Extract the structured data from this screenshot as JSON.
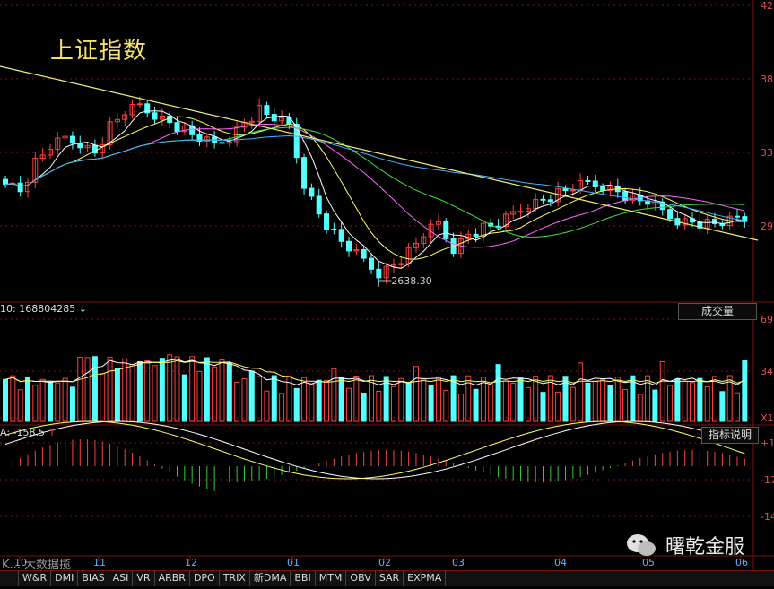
{
  "header": {
    "title": "上证指数"
  },
  "volume_header": {
    "text": "10: 168804285",
    "arrow": "↓",
    "right_button": "成交量"
  },
  "macd_header": {
    "text": "A: -158.5",
    "arrow": "↑",
    "right_button": "指标说明"
  },
  "right_axis": {
    "price_ticks": [
      "42",
      "38",
      "33",
      "29"
    ],
    "volume_ticks": [
      "69",
      "34",
      "X1"
    ],
    "macd_ticks": [
      "+1",
      "-17",
      "-14"
    ]
  },
  "x_axis": {
    "labels": [
      "10",
      "11",
      "12",
      "01",
      "02",
      "03",
      "04",
      "05",
      "06"
    ]
  },
  "tabs": [
    "W&R",
    "DMI",
    "BIAS",
    "ASI",
    "VR",
    "ARBR",
    "DPO",
    "TRIX",
    "新DMA",
    "BBI",
    "MTM",
    "OBV",
    "SAR",
    "EXPMA"
  ],
  "watermark": {
    "brand": "曙乾金服",
    "left_text": "K... 大数据揽"
  },
  "colors": {
    "up": "#ff4040",
    "down": "#54ffff",
    "grid": "#7a1010",
    "trend": "#f0f07a"
  },
  "chart_data": {
    "type": "candlestick",
    "title": "上证指数",
    "annotation_low": "2638.30",
    "y_ticks": [
      "42",
      "38",
      "33",
      "29"
    ],
    "x_ticks": [
      "10",
      "11",
      "12",
      "01",
      "02",
      "03",
      "04",
      "05",
      "06"
    ],
    "price_path": [
      3120,
      3060,
      3200,
      3280,
      3320,
      3300,
      3250,
      3380,
      3450,
      3480,
      3440,
      3400,
      3360,
      3320,
      3290,
      3330,
      3400,
      3460,
      3420,
      3380,
      3100,
      2950,
      2850,
      2780,
      2720,
      2660,
      2700,
      2760,
      2850,
      2900,
      2780,
      2850,
      2880,
      2900,
      2950,
      3000,
      3020,
      3050,
      3080,
      3100,
      3090,
      3060,
      3020,
      3010,
      2960,
      2920,
      2910,
      2900,
      2905,
      2925
    ]
  }
}
